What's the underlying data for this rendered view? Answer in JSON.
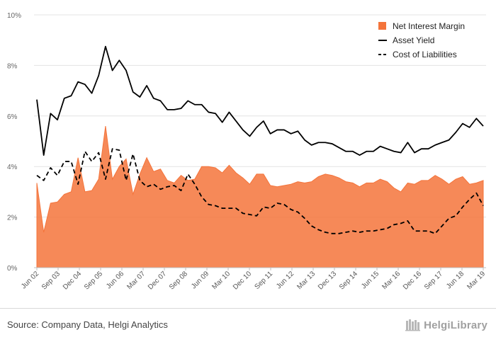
{
  "chart_data": {
    "type": "area",
    "title": "",
    "xlabel": "",
    "ylabel": "",
    "ylim": [
      0,
      10
    ],
    "y_ticks": [
      "0%",
      "2%",
      "4%",
      "6%",
      "8%",
      "10%"
    ],
    "grid": true,
    "legend_position": "top-right",
    "x_tick_labels": [
      "Jun 02",
      "Sep 03",
      "Dec 04",
      "Sep 05",
      "Jun 06",
      "Mar 07",
      "Dec 07",
      "Sep 08",
      "Jun 09",
      "Mar 10",
      "Dec 10",
      "Sep 11",
      "Jun 12",
      "Mar 13",
      "Dec 13",
      "Sep 14",
      "Jun 15",
      "Mar 16",
      "Dec 16",
      "Sep 17",
      "Jun 18",
      "Mar 19"
    ],
    "series": [
      {
        "name": "Net Interest Margin",
        "style": "area",
        "color": "#f4743b",
        "values": [
          3.35,
          1.4,
          2.55,
          2.6,
          2.9,
          3.0,
          4.35,
          3.0,
          3.05,
          3.5,
          5.6,
          3.5,
          4.0,
          4.3,
          2.9,
          3.7,
          4.35,
          3.8,
          3.9,
          3.45,
          3.35,
          3.65,
          3.45,
          3.5,
          4.0,
          4.0,
          3.95,
          3.75,
          4.05,
          3.75,
          3.55,
          3.3,
          3.7,
          3.7,
          3.25,
          3.2,
          3.25,
          3.3,
          3.4,
          3.35,
          3.4,
          3.6,
          3.7,
          3.65,
          3.55,
          3.4,
          3.35,
          3.2,
          3.35,
          3.35,
          3.5,
          3.4,
          3.15,
          3.0,
          3.35,
          3.3,
          3.45,
          3.45,
          3.65,
          3.5,
          3.3,
          3.5,
          3.6,
          3.3,
          3.35,
          3.45
        ]
      },
      {
        "name": "Asset Yield",
        "style": "solid",
        "color": "#000000",
        "values": [
          6.65,
          4.45,
          6.1,
          5.85,
          6.7,
          6.8,
          7.35,
          7.25,
          6.9,
          7.6,
          8.75,
          7.8,
          8.2,
          7.8,
          6.95,
          6.75,
          7.2,
          6.7,
          6.6,
          6.25,
          6.25,
          6.3,
          6.6,
          6.45,
          6.45,
          6.15,
          6.1,
          5.75,
          6.15,
          5.8,
          5.45,
          5.2,
          5.55,
          5.8,
          5.3,
          5.45,
          5.45,
          5.3,
          5.4,
          5.05,
          4.85,
          4.95,
          4.95,
          4.9,
          4.75,
          4.6,
          4.6,
          4.45,
          4.6,
          4.6,
          4.8,
          4.7,
          4.6,
          4.55,
          4.95,
          4.55,
          4.7,
          4.7,
          4.85,
          4.95,
          5.05,
          5.35,
          5.7,
          5.55,
          5.9,
          5.6
        ]
      },
      {
        "name": "Cost of Liabilities",
        "style": "dashed",
        "color": "#000000",
        "values": [
          3.65,
          3.45,
          3.95,
          3.65,
          4.2,
          4.2,
          3.3,
          4.6,
          4.2,
          4.55,
          3.5,
          4.7,
          4.65,
          3.45,
          4.5,
          3.45,
          3.2,
          3.3,
          3.1,
          3.2,
          3.25,
          3.05,
          3.7,
          3.3,
          2.8,
          2.5,
          2.45,
          2.35,
          2.35,
          2.35,
          2.15,
          2.1,
          2.05,
          2.4,
          2.35,
          2.55,
          2.5,
          2.3,
          2.2,
          1.95,
          1.65,
          1.5,
          1.4,
          1.35,
          1.35,
          1.4,
          1.45,
          1.4,
          1.45,
          1.45,
          1.5,
          1.55,
          1.7,
          1.75,
          1.85,
          1.45,
          1.45,
          1.45,
          1.35,
          1.65,
          1.95,
          2.05,
          2.4,
          2.7,
          2.95,
          2.45
        ]
      }
    ]
  },
  "footer": {
    "source": "Source: Company Data, Helgi Analytics",
    "brand": "HelgiLibrary"
  }
}
